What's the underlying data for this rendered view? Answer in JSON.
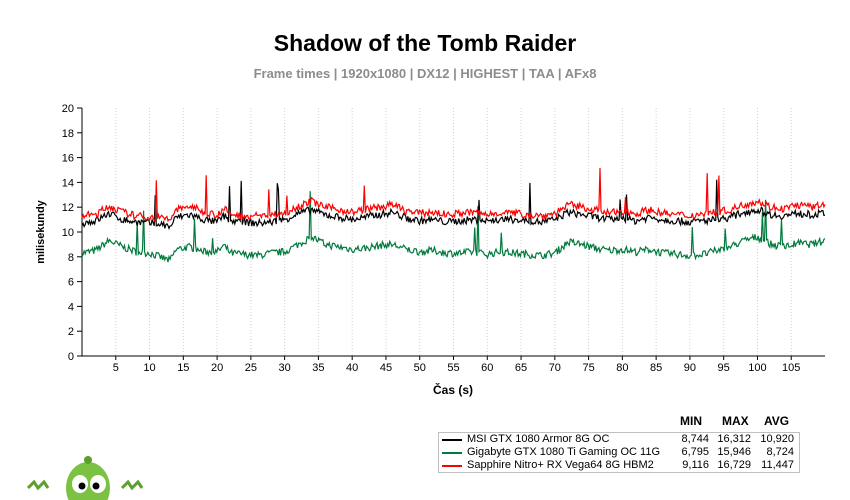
{
  "title": "Shadow of the Tomb Raider",
  "subtitle": "Frame times | 1920x1080 | DX12 | HIGHEST | TAA | AFx8",
  "stats_headers": [
    "MIN",
    "MAX",
    "AVG"
  ],
  "chart_data": {
    "type": "line",
    "title": "Shadow of the Tomb Raider",
    "subtitle": "Frame times | 1920x1080 | DX12 | HIGHEST | TAA | AFx8",
    "xlabel": "Čas (s)",
    "ylabel": "milisekundy",
    "xlim": [
      0,
      110
    ],
    "ylim": [
      0,
      20
    ],
    "xticks": [
      5,
      10,
      15,
      20,
      25,
      30,
      35,
      40,
      45,
      50,
      55,
      60,
      65,
      70,
      75,
      80,
      85,
      90,
      95,
      100,
      105
    ],
    "yticks": [
      0,
      2,
      4,
      6,
      8,
      10,
      12,
      14,
      16,
      18,
      20
    ],
    "grid": "vertical dotted",
    "legend_position": "bottom-right",
    "x": [
      0,
      2,
      4,
      6,
      8,
      10,
      12,
      13,
      14,
      16,
      18,
      20,
      21,
      22,
      24,
      26,
      28,
      30,
      32,
      34,
      36,
      38,
      40,
      42,
      44,
      46,
      48,
      50,
      52,
      54,
      56,
      58,
      60,
      62,
      64,
      66,
      68,
      70,
      72,
      74,
      76,
      78,
      80,
      82,
      84,
      86,
      88,
      90,
      92,
      94,
      96,
      98,
      100,
      102,
      104,
      106,
      108,
      110
    ],
    "series": [
      {
        "name": "MSI GTX 1080 Armor 8G OC",
        "color": "#000000",
        "min": "8,744",
        "max": "16,312",
        "avg": "10,920",
        "values": [
          10.7,
          10.9,
          11.5,
          11.0,
          10.8,
          10.7,
          10.6,
          10.4,
          11.2,
          11.4,
          11.0,
          10.8,
          11.3,
          10.9,
          10.8,
          10.7,
          10.8,
          11.0,
          11.5,
          11.8,
          11.4,
          11.2,
          11.0,
          11.2,
          11.4,
          11.6,
          11.1,
          10.9,
          11.0,
          10.8,
          10.9,
          11.0,
          10.9,
          11.0,
          11.0,
          10.9,
          10.8,
          11.0,
          11.6,
          11.4,
          11.2,
          11.0,
          11.1,
          10.9,
          11.2,
          11.0,
          10.9,
          10.8,
          10.9,
          11.0,
          11.2,
          11.6,
          11.8,
          11.4,
          11.3,
          11.5,
          11.4,
          11.5
        ]
      },
      {
        "name": "Gigabyte GTX 1080 Ti Gaming OC 11G",
        "color": "#007a3d",
        "min": "6,795",
        "max": "15,946",
        "avg": "8,724",
        "values": [
          8.3,
          8.5,
          9.3,
          8.8,
          8.4,
          8.3,
          7.9,
          7.7,
          8.6,
          8.8,
          8.4,
          8.4,
          8.9,
          8.3,
          8.2,
          8.1,
          8.3,
          8.4,
          9.0,
          9.6,
          9.0,
          8.8,
          8.6,
          8.7,
          8.9,
          9.0,
          8.6,
          8.4,
          8.5,
          8.3,
          8.3,
          8.4,
          8.2,
          8.4,
          8.3,
          8.2,
          8.1,
          8.3,
          9.2,
          9.0,
          8.7,
          8.5,
          8.6,
          8.4,
          8.6,
          8.3,
          8.2,
          8.1,
          8.2,
          8.5,
          8.8,
          9.3,
          9.6,
          9.0,
          8.8,
          9.1,
          9.0,
          9.3
        ]
      },
      {
        "name": "Sapphire Nitro+ RX Vega64 8G HBM2",
        "color": "#ff0000",
        "min": "9,116",
        "max": "16,729",
        "avg": "11,447",
        "values": [
          11.3,
          11.4,
          12.1,
          11.6,
          11.3,
          11.2,
          11.1,
          11.0,
          11.8,
          12.1,
          11.6,
          11.4,
          11.9,
          11.4,
          11.3,
          11.3,
          11.4,
          11.5,
          12.1,
          12.5,
          12.0,
          11.8,
          11.6,
          11.8,
          12.0,
          12.2,
          11.7,
          11.5,
          11.6,
          11.4,
          11.5,
          11.6,
          11.4,
          11.6,
          11.5,
          11.4,
          11.3,
          11.5,
          12.2,
          12.0,
          11.8,
          11.5,
          11.7,
          11.5,
          11.8,
          11.5,
          11.4,
          11.3,
          11.5,
          11.6,
          11.8,
          12.2,
          12.5,
          12.0,
          11.9,
          12.2,
          12.0,
          12.2
        ]
      }
    ]
  }
}
